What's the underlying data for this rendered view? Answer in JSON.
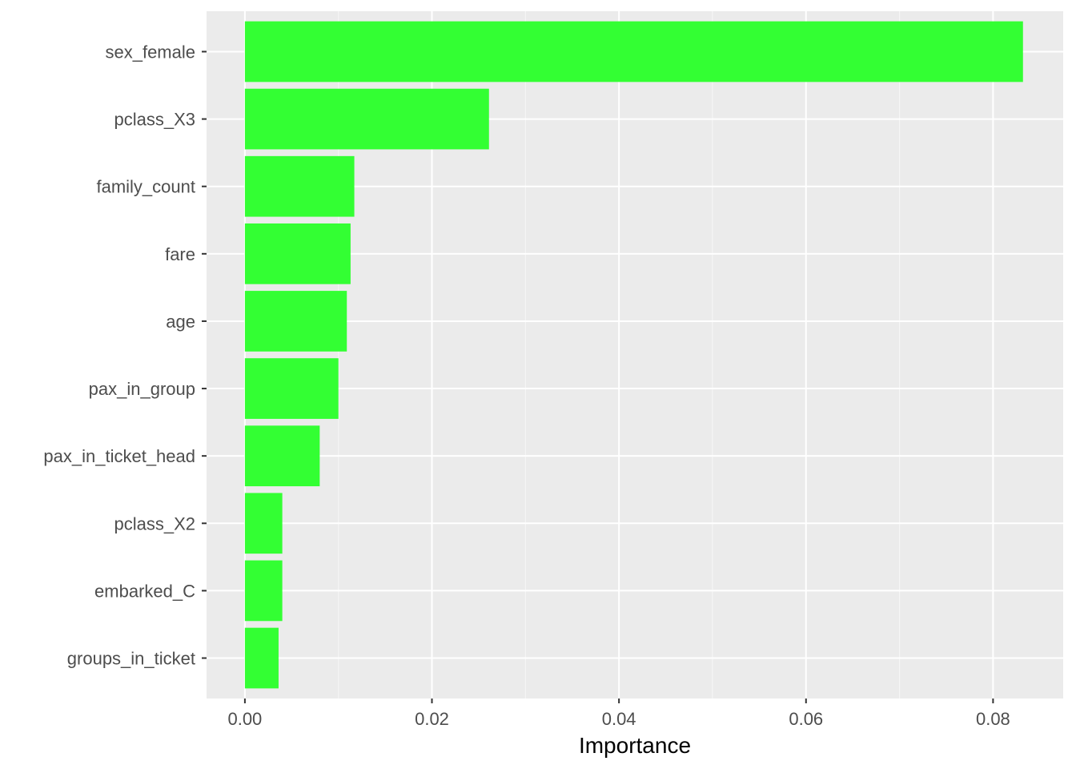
{
  "chart_data": {
    "type": "bar",
    "orientation": "horizontal",
    "categories": [
      "sex_female",
      "pclass_X3",
      "family_count",
      "fare",
      "age",
      "pax_in_group",
      "pax_in_ticket_head",
      "pclass_X2",
      "embarked_C",
      "groups_in_ticket"
    ],
    "values": [
      0.0832,
      0.0261,
      0.0117,
      0.0113,
      0.0109,
      0.01,
      0.008,
      0.004,
      0.004,
      0.0036
    ],
    "title": "",
    "xlabel": "Importance",
    "ylabel": "",
    "xlim": [
      -0.0041,
      0.0875
    ],
    "x_ticks": [
      0.0,
      0.02,
      0.04,
      0.06,
      0.08
    ],
    "x_tick_labels": [
      "0.00",
      "0.02",
      "0.04",
      "0.06",
      "0.08"
    ],
    "grid": true,
    "legend": "none",
    "colors": {
      "bar": "#33FF33",
      "panel_background": "#EBEBEB",
      "grid_major": "#FFFFFF",
      "grid_minor": "#F7F7F7",
      "tick_text": "#4D4D4D",
      "axis_title_text": "#000000"
    }
  }
}
